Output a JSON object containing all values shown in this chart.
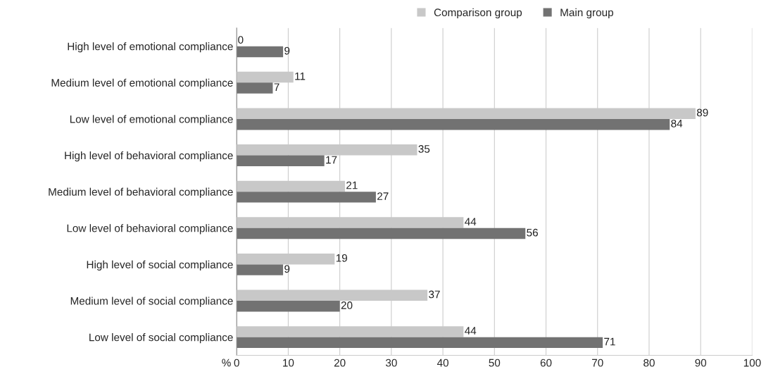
{
  "chart_data": {
    "type": "bar",
    "orientation": "horizontal",
    "categories": [
      "High level of emotional compliance",
      "Medium level of emotional compliance",
      "Low level of emotional compliance",
      "High level of behavioral compliance",
      "Medium level of behavioral compliance",
      "Low level of behavioral compliance",
      "High level of social compliance",
      "Medium level of social compliance",
      "Low level of social compliance"
    ],
    "series": [
      {
        "name": "Comparison group",
        "color": "#c8c8c8",
        "values": [
          0,
          11,
          89,
          35,
          21,
          44,
          19,
          37,
          44
        ]
      },
      {
        "name": "Main group",
        "color": "#727272",
        "values": [
          9,
          7,
          84,
          17,
          27,
          56,
          9,
          20,
          71
        ]
      }
    ],
    "xlabel": "%",
    "xlim": [
      0,
      100
    ],
    "xticks": [
      0,
      10,
      20,
      30,
      40,
      50,
      60,
      70,
      80,
      90,
      100
    ],
    "grid": "x",
    "legend": "top right",
    "data_labels": true
  }
}
